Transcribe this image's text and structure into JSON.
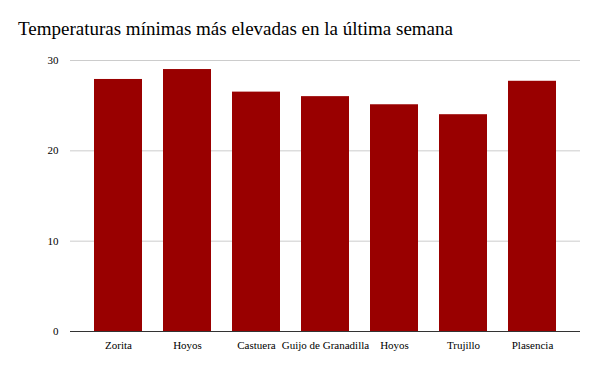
{
  "chart_data": {
    "type": "bar",
    "title": "Temperaturas mínimas más elevadas en la última semana",
    "categories": [
      "Zorita",
      "Hoyos",
      "Castuera",
      "Guijo de Granadilla",
      "Hoyos",
      "Trujillo",
      "Plasencia"
    ],
    "values": [
      27.9,
      29,
      26.5,
      26,
      25.1,
      24,
      27.7
    ],
    "color": "#990000",
    "ylim": [
      0,
      30
    ],
    "yticks": [
      0,
      10,
      20,
      30
    ],
    "grid": true
  }
}
